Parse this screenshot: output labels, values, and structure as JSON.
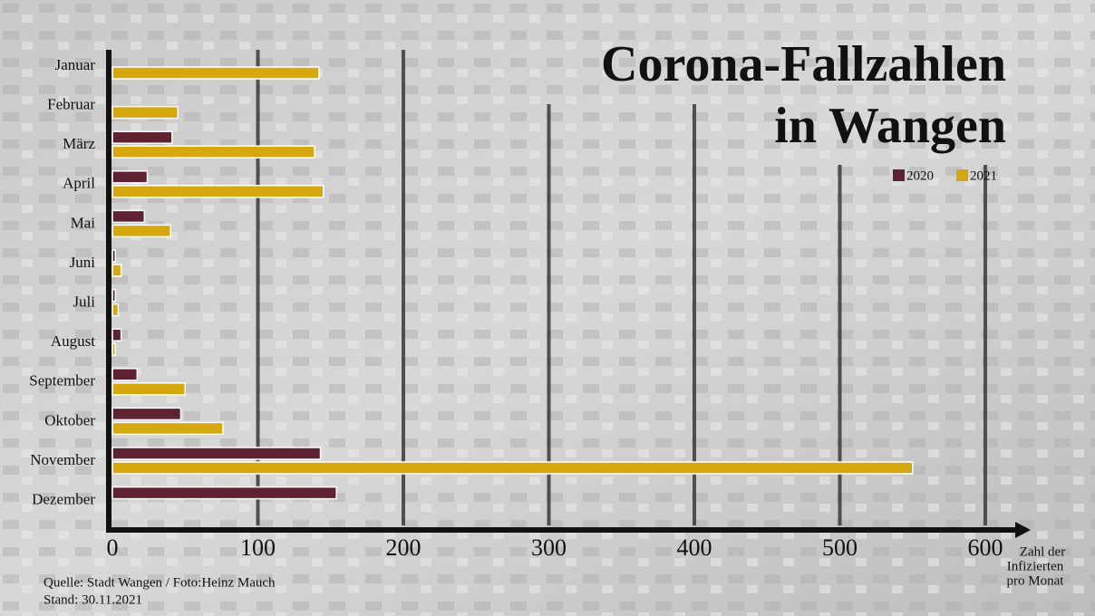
{
  "chart_data": {
    "type": "hbar",
    "title": [
      "Corona-Fallzahlen",
      "in Wangen"
    ],
    "xlabel": [
      "Zahl der",
      "Infizierten",
      "pro Monat"
    ],
    "source": [
      "Quelle: Stadt Wangen / Foto:Heinz Mauch",
      "Stand: 30.11.2021"
    ],
    "categories": [
      "Januar",
      "Februar",
      "März",
      "April",
      "Mai",
      "Juni",
      "Juli",
      "August",
      "September",
      "Oktober",
      "November",
      "Dezember"
    ],
    "series": [
      {
        "name": "2020",
        "color": "#5e2233",
        "values": [
          null,
          null,
          41,
          24,
          22,
          2,
          2,
          6,
          17,
          47,
          143,
          154
        ]
      },
      {
        "name": "2021",
        "color": "#d6a80f",
        "values": [
          142,
          45,
          139,
          145,
          40,
          6,
          4,
          2,
          50,
          76,
          550,
          null
        ]
      }
    ],
    "xlim": [
      0,
      600
    ],
    "xticks": [
      0,
      100,
      200,
      300,
      400,
      500,
      600
    ],
    "grid": true,
    "legend": "top-right"
  }
}
